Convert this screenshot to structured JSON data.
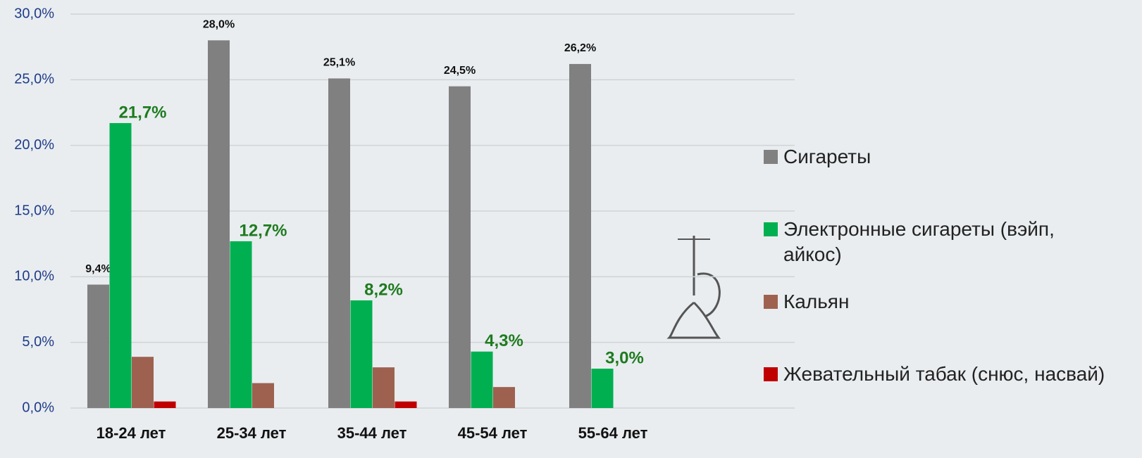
{
  "chart_data": {
    "type": "bar",
    "categories": [
      "18-24 лет",
      "25-34 лет",
      "35-44 лет",
      "45-54 лет",
      "55-64 лет"
    ],
    "series": [
      {
        "name": "Сигареты",
        "color": "#808080",
        "values": [
          9.4,
          28.0,
          25.1,
          24.5,
          26.2
        ],
        "value_labels": [
          "9,4%",
          "28,0%",
          "25,1%",
          "24,5%",
          "26,2%"
        ]
      },
      {
        "name": "Электронные сигареты (вэйп, айкос)",
        "color": "#00b050",
        "values": [
          21.7,
          12.7,
          8.2,
          4.3,
          3.0
        ],
        "value_labels": [
          "21,7%",
          "12,7%",
          "8,2%",
          "4,3%",
          "3,0%"
        ]
      },
      {
        "name": "Кальян",
        "color": "#9e6150",
        "values": [
          3.9,
          1.9,
          3.1,
          1.6,
          0
        ]
      },
      {
        "name": "Жевательный табак (снюс, насвай)",
        "color": "#c00000",
        "values": [
          0.5,
          0,
          0.5,
          0,
          0
        ]
      }
    ],
    "ylim": [
      0,
      30
    ],
    "yticks": [
      {
        "value": 0,
        "label": "0,0%"
      },
      {
        "value": 5,
        "label": "5,0%"
      },
      {
        "value": 10,
        "label": "10,0%"
      },
      {
        "value": 15,
        "label": "15,0%"
      },
      {
        "value": 20,
        "label": "20,0%"
      },
      {
        "value": 25,
        "label": "25,0%"
      },
      {
        "value": 30,
        "label": "30,0%"
      }
    ],
    "grid": true,
    "legend": "right"
  }
}
